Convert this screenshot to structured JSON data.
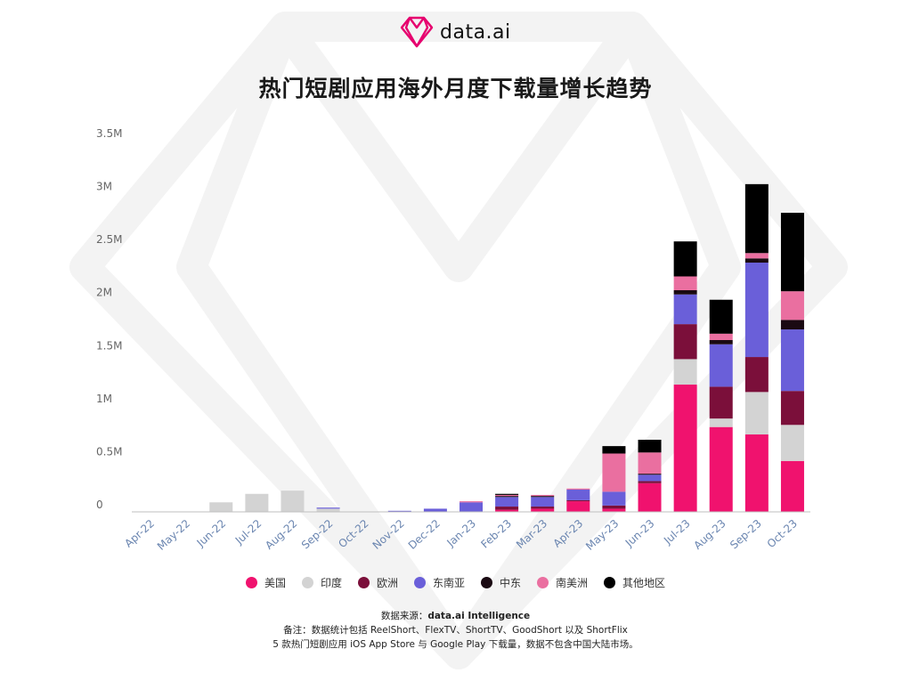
{
  "brand": {
    "name": "data.ai",
    "logo_icon": "diamond-logo-icon",
    "logo_color": "#e6006e"
  },
  "title": "热门短剧应用海外月度下载量增长趋势",
  "chart_data": {
    "type": "bar",
    "stacked": true,
    "title": "热门短剧应用海外月度下载量增长趋势",
    "xlabel": "",
    "ylabel": "",
    "ylim": [
      0,
      3500000
    ],
    "y_ticks": [
      "0",
      "0.5M",
      "1M",
      "1.5M",
      "2M",
      "2.5M",
      "3M",
      "3.5M"
    ],
    "y_tick_values": [
      0,
      500000,
      1000000,
      1500000,
      2000000,
      2500000,
      3000000,
      3500000
    ],
    "grid": false,
    "legend_position": "bottom",
    "categories": [
      "Apr-22",
      "May-22",
      "Jun-22",
      "Jul-22",
      "Aug-22",
      "Sep-22",
      "Oct-22",
      "Nov-22",
      "Dec-22",
      "Jan-23",
      "Feb-23",
      "Mar-23",
      "Apr-23",
      "May-23",
      "Jun-23",
      "Jul-23",
      "Aug-23",
      "Sep-23",
      "Oct-23"
    ],
    "series": [
      {
        "name": "美国",
        "color": "#f0126e",
        "values": [
          0,
          0,
          0,
          0,
          0,
          0,
          0,
          0,
          0,
          0,
          20000,
          30000,
          100000,
          30000,
          270000,
          1200000,
          800000,
          730000,
          480000
        ]
      },
      {
        "name": "印度",
        "color": "#d3d3d3",
        "values": [
          0,
          0,
          90000,
          170000,
          200000,
          30000,
          0,
          0,
          0,
          0,
          0,
          0,
          0,
          0,
          0,
          240000,
          80000,
          400000,
          340000
        ]
      },
      {
        "name": "欧洲",
        "color": "#7b0f3a",
        "values": [
          0,
          0,
          0,
          0,
          0,
          0,
          0,
          0,
          0,
          0,
          30000,
          20000,
          10000,
          30000,
          20000,
          330000,
          300000,
          330000,
          320000
        ]
      },
      {
        "name": "东南亚",
        "color": "#6a5fd9",
        "values": [
          0,
          0,
          0,
          0,
          0,
          10000,
          0,
          10000,
          30000,
          90000,
          90000,
          90000,
          100000,
          130000,
          60000,
          280000,
          400000,
          890000,
          580000
        ]
      },
      {
        "name": "中东",
        "color": "#1a0a12",
        "values": [
          0,
          0,
          0,
          0,
          0,
          0,
          0,
          0,
          0,
          0,
          10000,
          10000,
          0,
          0,
          10000,
          40000,
          40000,
          40000,
          90000
        ]
      },
      {
        "name": "南美洲",
        "color": "#ea6fa0",
        "values": [
          0,
          0,
          0,
          0,
          0,
          0,
          0,
          0,
          0,
          10000,
          10000,
          10000,
          10000,
          360000,
          200000,
          130000,
          60000,
          50000,
          270000
        ]
      },
      {
        "name": "其他地区",
        "color": "#000000",
        "values": [
          0,
          0,
          0,
          0,
          0,
          0,
          0,
          0,
          0,
          0,
          10000,
          0,
          0,
          70000,
          120000,
          330000,
          320000,
          650000,
          740000
        ]
      }
    ]
  },
  "footer": {
    "source_label": "数据来源：",
    "source_value": "data.ai Intelligence",
    "note_line1": "备注：数据统计包括 ReelShort、FlexTV、ShortTV、GoodShort 以及 ShortFlix",
    "note_line2": "5 款热门短剧应用 iOS App Store 与 Google Play 下载量，数据不包含中国大陆市场。"
  }
}
